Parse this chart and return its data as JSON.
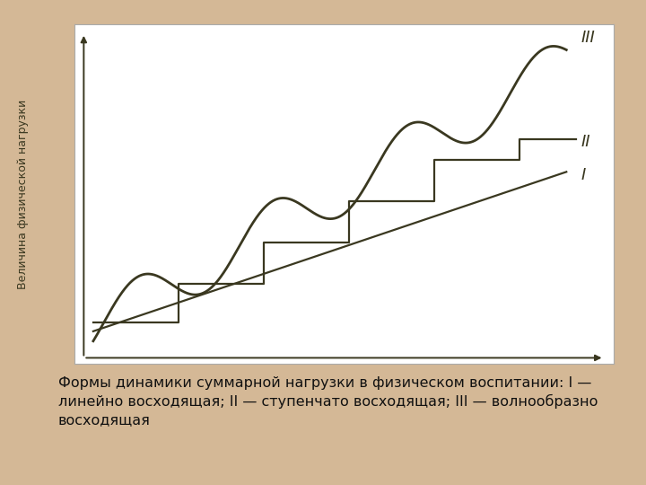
{
  "background_color": "#d4b896",
  "chart_bg": "#ffffff",
  "line_color": "#3a3820",
  "ylabel": "Величина физической нагрузки",
  "label_I": "I",
  "label_II": "II",
  "label_III": "III",
  "label_fontsize": 13,
  "caption_fontsize": 11.5,
  "caption_line1": "Формы динамики суммарной нагрузки в физическом воспитании: I —",
  "caption_line2": "линейно восходящая; II — ступенчато восходящая; III — волнообразно",
  "caption_line3": "восходящая"
}
